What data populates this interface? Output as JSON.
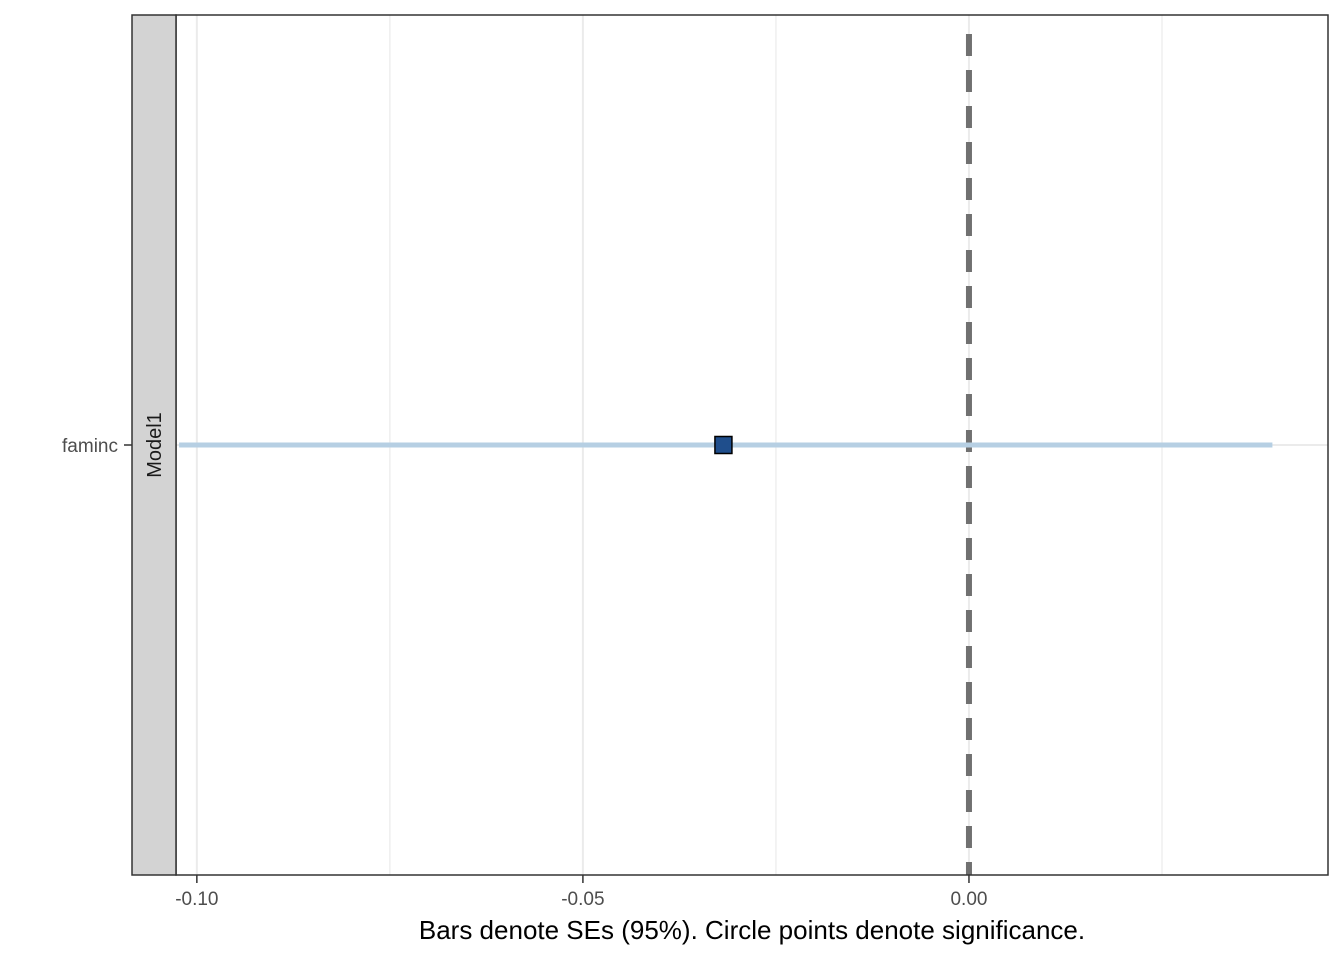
{
  "chart_data": {
    "type": "scatter",
    "panel_label": "Model1",
    "xlabel": "Bars denote SEs (95%). Circle points denote significance.",
    "ylabel": "",
    "title": "",
    "xlim": [
      -0.1027,
      0.0465
    ],
    "x_ticks": [
      -0.1,
      -0.05,
      0.0
    ],
    "x_tick_labels": [
      "-0.10",
      "-0.05",
      "0.00"
    ],
    "x_minor_ticks": [
      -0.075,
      -0.025,
      0.025
    ],
    "categories": [
      "faminc"
    ],
    "reference_line": 0,
    "grid": true,
    "legend": "none",
    "points": [
      {
        "term": "faminc",
        "estimate": -0.0318,
        "conf_low": -0.1023,
        "conf_high": 0.0393,
        "significant": false
      }
    ],
    "colors": {
      "point_fill": "#1f4e8c",
      "error_bar": "#b6cfe3",
      "reference_line": "#707070",
      "strip_fill": "#d3d3d3",
      "grid": "#ebebeb"
    }
  }
}
